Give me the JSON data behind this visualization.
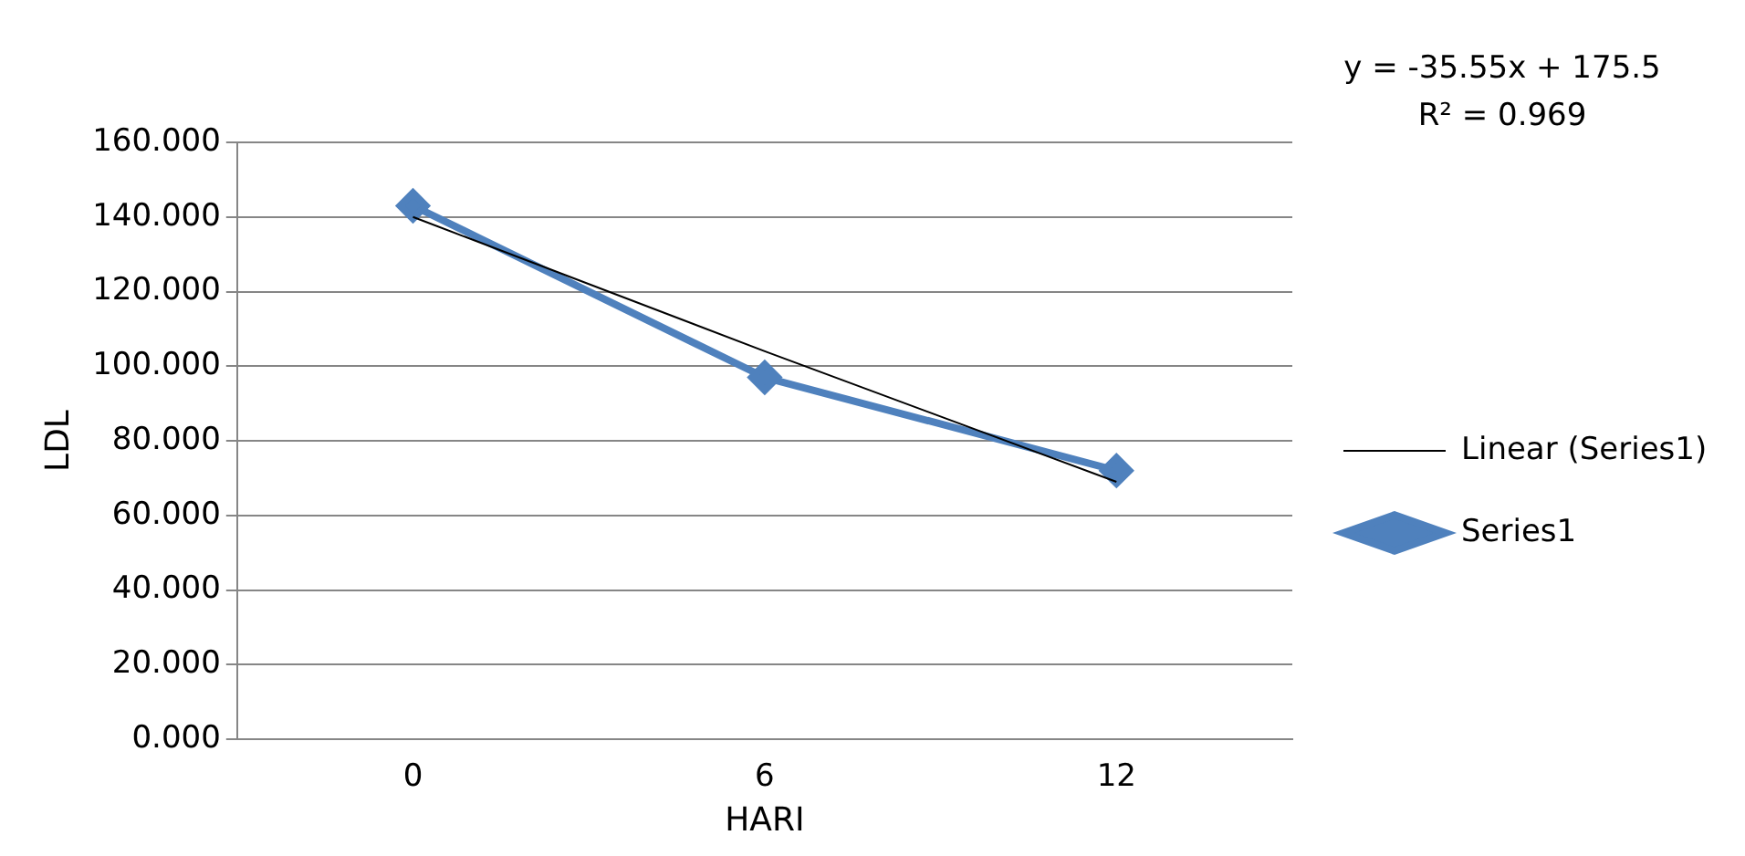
{
  "chart_data": {
    "type": "line",
    "xlabel": "HARI",
    "ylabel": "LDL",
    "categories": [
      "0",
      "6",
      "12"
    ],
    "series": [
      {
        "name": "Series1",
        "color": "#4f81bd",
        "values": [
          143,
          97,
          72
        ],
        "marker": "diamond"
      },
      {
        "name": "Linear (Series1)",
        "color": "#000000",
        "type": "line",
        "x": [
          "0",
          "6",
          "12"
        ],
        "values": [
          140,
          104,
          69
        ],
        "marker": "none"
      }
    ],
    "ylim": [
      0,
      160
    ],
    "yticks": [
      {
        "value": 0,
        "label": "0.000"
      },
      {
        "value": 20,
        "label": "20.000"
      },
      {
        "value": 40,
        "label": "40.000"
      },
      {
        "value": 60,
        "label": "60.000"
      },
      {
        "value": 80,
        "label": "80.000"
      },
      {
        "value": 100,
        "label": "100.000"
      },
      {
        "value": 120,
        "label": "120.000"
      },
      {
        "value": 140,
        "label": "140.000"
      },
      {
        "value": 160,
        "label": "160.000"
      }
    ],
    "grid": "y",
    "legend": "right",
    "annotations": [
      "y = -35.55x + 175.5",
      "R² = 0.969"
    ]
  }
}
